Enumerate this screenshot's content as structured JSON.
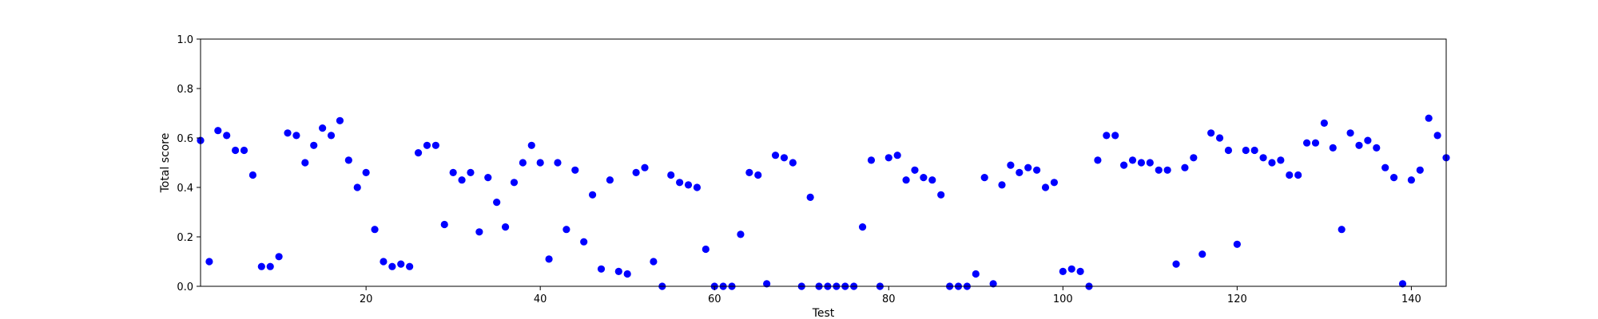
{
  "chart_data": {
    "type": "scatter",
    "xlabel": "Test",
    "ylabel": "Total score",
    "xlim": [
      1,
      144
    ],
    "ylim": [
      0,
      1.0
    ],
    "xticks": [
      20,
      40,
      60,
      80,
      100,
      120,
      140
    ],
    "yticks": [
      0.0,
      0.2,
      0.4,
      0.6,
      0.8,
      1.0
    ],
    "ytick_labels": [
      "0.0",
      "0.2",
      "0.4",
      "0.6",
      "0.8",
      "1.0"
    ],
    "grid": false,
    "legend": "none",
    "marker_color": "#0000ff",
    "points": [
      [
        1,
        0.59
      ],
      [
        2,
        0.1
      ],
      [
        3,
        0.63
      ],
      [
        4,
        0.61
      ],
      [
        5,
        0.55
      ],
      [
        6,
        0.55
      ],
      [
        7,
        0.45
      ],
      [
        8,
        0.08
      ],
      [
        9,
        0.08
      ],
      [
        10,
        0.12
      ],
      [
        11,
        0.62
      ],
      [
        12,
        0.61
      ],
      [
        13,
        0.5
      ],
      [
        14,
        0.57
      ],
      [
        15,
        0.64
      ],
      [
        16,
        0.61
      ],
      [
        17,
        0.67
      ],
      [
        18,
        0.51
      ],
      [
        19,
        0.4
      ],
      [
        20,
        0.46
      ],
      [
        21,
        0.23
      ],
      [
        22,
        0.1
      ],
      [
        23,
        0.08
      ],
      [
        24,
        0.09
      ],
      [
        25,
        0.08
      ],
      [
        26,
        0.54
      ],
      [
        27,
        0.57
      ],
      [
        28,
        0.57
      ],
      [
        29,
        0.25
      ],
      [
        30,
        0.46
      ],
      [
        31,
        0.43
      ],
      [
        32,
        0.46
      ],
      [
        33,
        0.22
      ],
      [
        34,
        0.44
      ],
      [
        35,
        0.34
      ],
      [
        36,
        0.24
      ],
      [
        37,
        0.42
      ],
      [
        38,
        0.5
      ],
      [
        39,
        0.57
      ],
      [
        40,
        0.5
      ],
      [
        41,
        0.11
      ],
      [
        42,
        0.5
      ],
      [
        43,
        0.23
      ],
      [
        44,
        0.47
      ],
      [
        45,
        0.18
      ],
      [
        46,
        0.37
      ],
      [
        47,
        0.07
      ],
      [
        48,
        0.43
      ],
      [
        49,
        0.06
      ],
      [
        50,
        0.05
      ],
      [
        51,
        0.46
      ],
      [
        52,
        0.48
      ],
      [
        53,
        0.1
      ],
      [
        54,
        0.0
      ],
      [
        55,
        0.45
      ],
      [
        56,
        0.42
      ],
      [
        57,
        0.41
      ],
      [
        58,
        0.4
      ],
      [
        59,
        0.15
      ],
      [
        60,
        0.0
      ],
      [
        61,
        0.0
      ],
      [
        62,
        0.0
      ],
      [
        63,
        0.21
      ],
      [
        64,
        0.46
      ],
      [
        65,
        0.45
      ],
      [
        66,
        0.01
      ],
      [
        67,
        0.53
      ],
      [
        68,
        0.52
      ],
      [
        69,
        0.5
      ],
      [
        70,
        0.0
      ],
      [
        71,
        0.36
      ],
      [
        72,
        0.0
      ],
      [
        73,
        0.0
      ],
      [
        74,
        0.0
      ],
      [
        75,
        0.0
      ],
      [
        76,
        0.0
      ],
      [
        77,
        0.24
      ],
      [
        78,
        0.51
      ],
      [
        79,
        0.0
      ],
      [
        80,
        0.52
      ],
      [
        81,
        0.53
      ],
      [
        82,
        0.43
      ],
      [
        83,
        0.47
      ],
      [
        84,
        0.44
      ],
      [
        85,
        0.43
      ],
      [
        86,
        0.37
      ],
      [
        87,
        0.0
      ],
      [
        88,
        0.0
      ],
      [
        89,
        0.0
      ],
      [
        90,
        0.05
      ],
      [
        91,
        0.44
      ],
      [
        92,
        0.01
      ],
      [
        93,
        0.41
      ],
      [
        94,
        0.49
      ],
      [
        95,
        0.46
      ],
      [
        96,
        0.48
      ],
      [
        97,
        0.47
      ],
      [
        98,
        0.4
      ],
      [
        99,
        0.42
      ],
      [
        100,
        0.06
      ],
      [
        101,
        0.07
      ],
      [
        102,
        0.06
      ],
      [
        103,
        0.0
      ],
      [
        104,
        0.51
      ],
      [
        105,
        0.61
      ],
      [
        106,
        0.61
      ],
      [
        107,
        0.49
      ],
      [
        108,
        0.51
      ],
      [
        109,
        0.5
      ],
      [
        110,
        0.5
      ],
      [
        111,
        0.47
      ],
      [
        112,
        0.47
      ],
      [
        113,
        0.09
      ],
      [
        114,
        0.48
      ],
      [
        115,
        0.52
      ],
      [
        116,
        0.13
      ],
      [
        117,
        0.62
      ],
      [
        118,
        0.6
      ],
      [
        119,
        0.55
      ],
      [
        120,
        0.17
      ],
      [
        121,
        0.55
      ],
      [
        122,
        0.55
      ],
      [
        123,
        0.52
      ],
      [
        124,
        0.5
      ],
      [
        125,
        0.51
      ],
      [
        126,
        0.45
      ],
      [
        127,
        0.45
      ],
      [
        128,
        0.58
      ],
      [
        129,
        0.58
      ],
      [
        130,
        0.66
      ],
      [
        131,
        0.56
      ],
      [
        132,
        0.23
      ],
      [
        133,
        0.62
      ],
      [
        134,
        0.57
      ],
      [
        135,
        0.59
      ],
      [
        136,
        0.56
      ],
      [
        137,
        0.48
      ],
      [
        138,
        0.44
      ],
      [
        139,
        0.01
      ],
      [
        140,
        0.43
      ],
      [
        141,
        0.47
      ],
      [
        142,
        0.68
      ],
      [
        143,
        0.61
      ],
      [
        144,
        0.52
      ]
    ]
  }
}
